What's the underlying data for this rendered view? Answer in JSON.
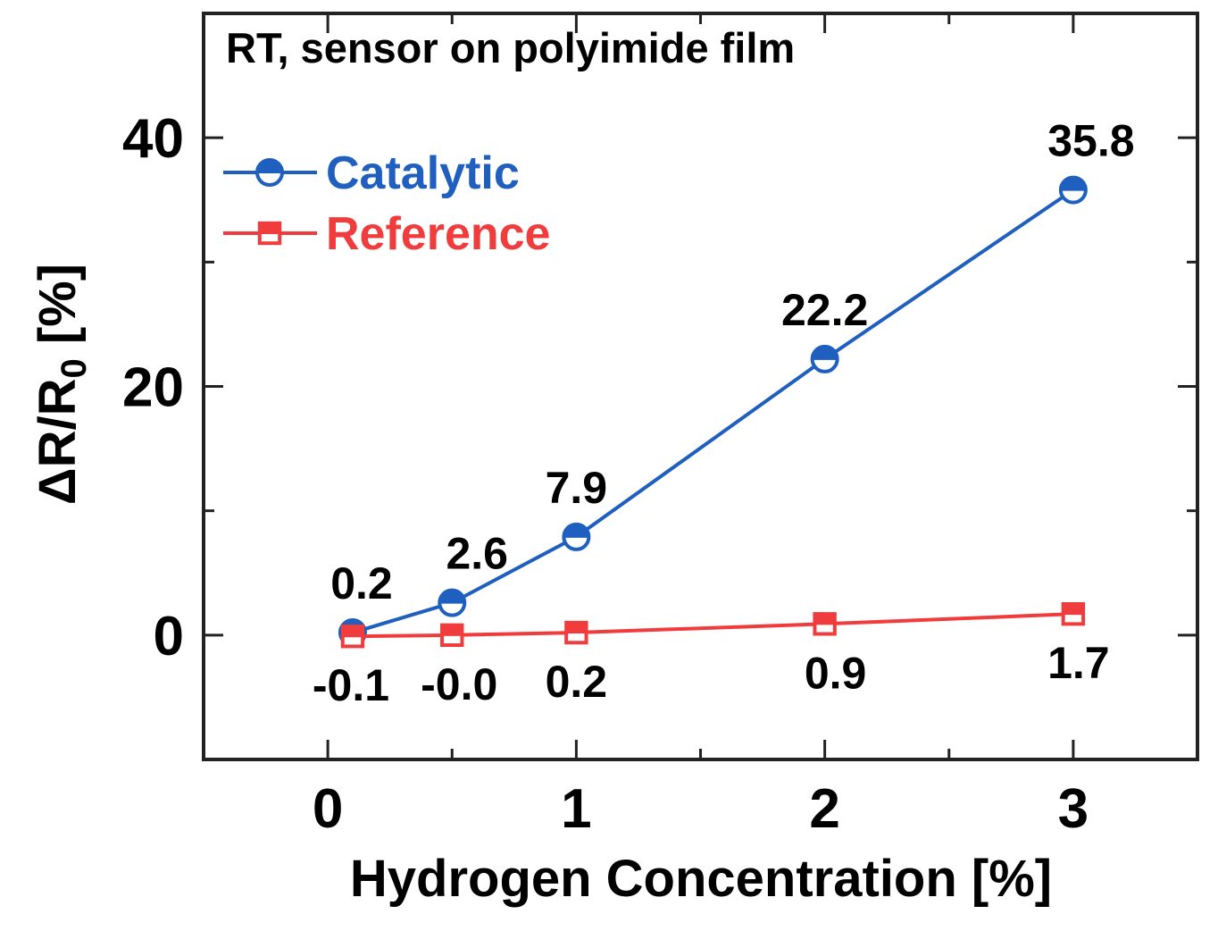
{
  "chart_data": {
    "type": "line",
    "title": "",
    "annotation": "RT, sensor on polyimide film",
    "xlabel": "Hydrogen Concentration [%]",
    "ylabel": {
      "prefix": "ΔR/R",
      "subscript": "0",
      "suffix": " [%]"
    },
    "xlim": [
      -0.5,
      3.5
    ],
    "ylim": [
      -10,
      50
    ],
    "xticks": [
      0,
      1,
      2,
      3
    ],
    "yticks": [
      0,
      20,
      40
    ],
    "x_minor_ticks": [
      0.5,
      1.5,
      2.5
    ],
    "y_minor_ticks": [
      -10,
      10,
      30
    ],
    "xtick_labels": [
      "0",
      "1",
      "2",
      "3"
    ],
    "ytick_labels": [
      "0",
      "20",
      "40"
    ],
    "grid": false,
    "legend_position": "top-left",
    "series": [
      {
        "name": "Catalytic",
        "color": "#1f5fbf",
        "marker": "half-filled-circle",
        "x": [
          0.1,
          0.5,
          1,
          2,
          3
        ],
        "y": [
          0.2,
          2.6,
          7.9,
          22.2,
          35.8
        ],
        "labels": [
          "0.2",
          "2.6",
          "7.9",
          "22.2",
          "35.8"
        ]
      },
      {
        "name": "Reference",
        "color": "#f03c3c",
        "marker": "half-filled-square",
        "x": [
          0.1,
          0.5,
          1,
          2,
          3
        ],
        "y": [
          -0.1,
          -0.0,
          0.2,
          0.9,
          1.7
        ],
        "labels": [
          "-0.1",
          "-0.0",
          "0.2",
          "0.9",
          "1.7"
        ]
      }
    ]
  }
}
